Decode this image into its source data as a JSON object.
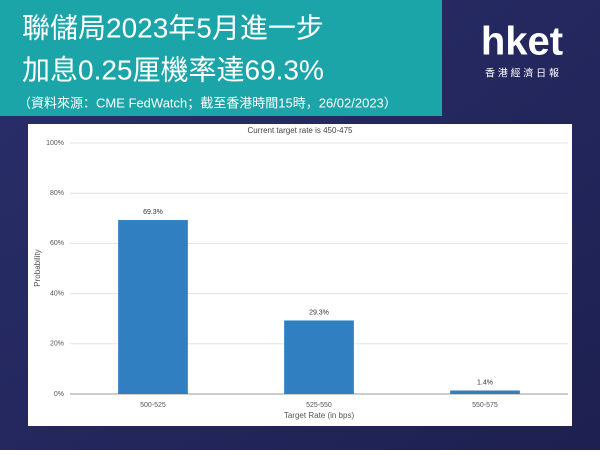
{
  "header": {
    "title_lines": [
      "聯儲局2023年5月進一步",
      "加息0.25厘機率達69.3%"
    ],
    "source": "（資料來源：CME FedWatch；截至香港時間15時，26/02/2023）"
  },
  "logo": {
    "name": "hket",
    "subtitle": "香 港 經 濟 日 報"
  },
  "chart_data": {
    "type": "bar",
    "title": "Current target rate is 450-475",
    "x_label": "Target Rate (in bps)",
    "y_label": "Probability",
    "categories": [
      "500-525",
      "525-550",
      "550-575"
    ],
    "values": [
      69.3,
      29.3,
      1.4
    ],
    "value_labels": [
      "69.3%",
      "29.3%",
      "1.4%"
    ],
    "color": "#2f7fc1",
    "ylim": [
      0,
      100
    ],
    "yticks": [
      {
        "value": 0,
        "label": "0%"
      },
      {
        "value": 20,
        "label": "20%"
      },
      {
        "value": 40,
        "label": "40%"
      },
      {
        "value": 60,
        "label": "60%"
      },
      {
        "value": 80,
        "label": "80%"
      },
      {
        "value": 100,
        "label": "100%"
      }
    ],
    "grid": true
  }
}
